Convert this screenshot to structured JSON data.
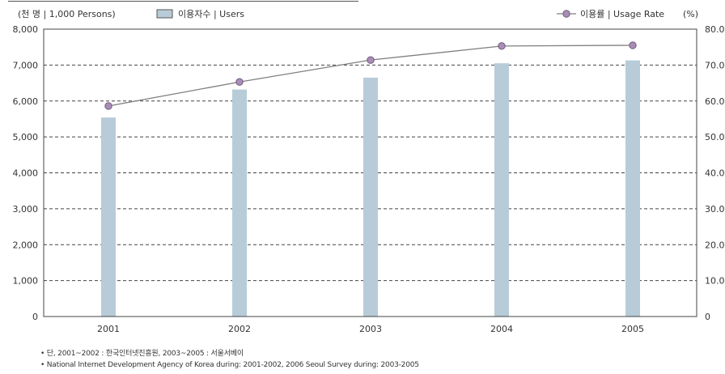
{
  "chart_data": {
    "type": "bar+line",
    "categories": [
      "2001",
      "2002",
      "2003",
      "2004",
      "2005"
    ],
    "left_axis_unit": "(천 명 | 1,000 Persons)",
    "right_axis_unit": "(%)",
    "y_left": {
      "range": [
        0,
        8000
      ],
      "ticks": [
        "0",
        "1,000",
        "2,000",
        "3,000",
        "4,000",
        "5,000",
        "6,000",
        "7,000",
        "8,000"
      ]
    },
    "y_right": {
      "range": [
        0,
        80
      ],
      "ticks": [
        "0",
        "10.0",
        "20.0",
        "30.0",
        "40.0",
        "50.0",
        "60.0",
        "70.0",
        "80.0"
      ]
    },
    "series": [
      {
        "name": "이용자수 | Users",
        "type": "bar",
        "axis": "left",
        "color": "#b8cbd8",
        "values": [
          5540,
          6320,
          6650,
          7050,
          7130
        ]
      },
      {
        "name": "이용률 | Usage Rate",
        "type": "line",
        "axis": "right",
        "color": "#7f7f7f",
        "marker_color": "#a98db5",
        "values": [
          58.6,
          65.3,
          71.4,
          75.3,
          75.5
        ]
      }
    ],
    "grid": "dashed horizontal",
    "legend_position": "top"
  },
  "notes": [
    "• 단, 2001~2002 : 한국인터넷진흥원, 2003~2005 : 서울서베이",
    "• National Internet Development Agency of Korea  during: 2001-2002, 2006 Seoul Survey during: 2003-2005"
  ]
}
